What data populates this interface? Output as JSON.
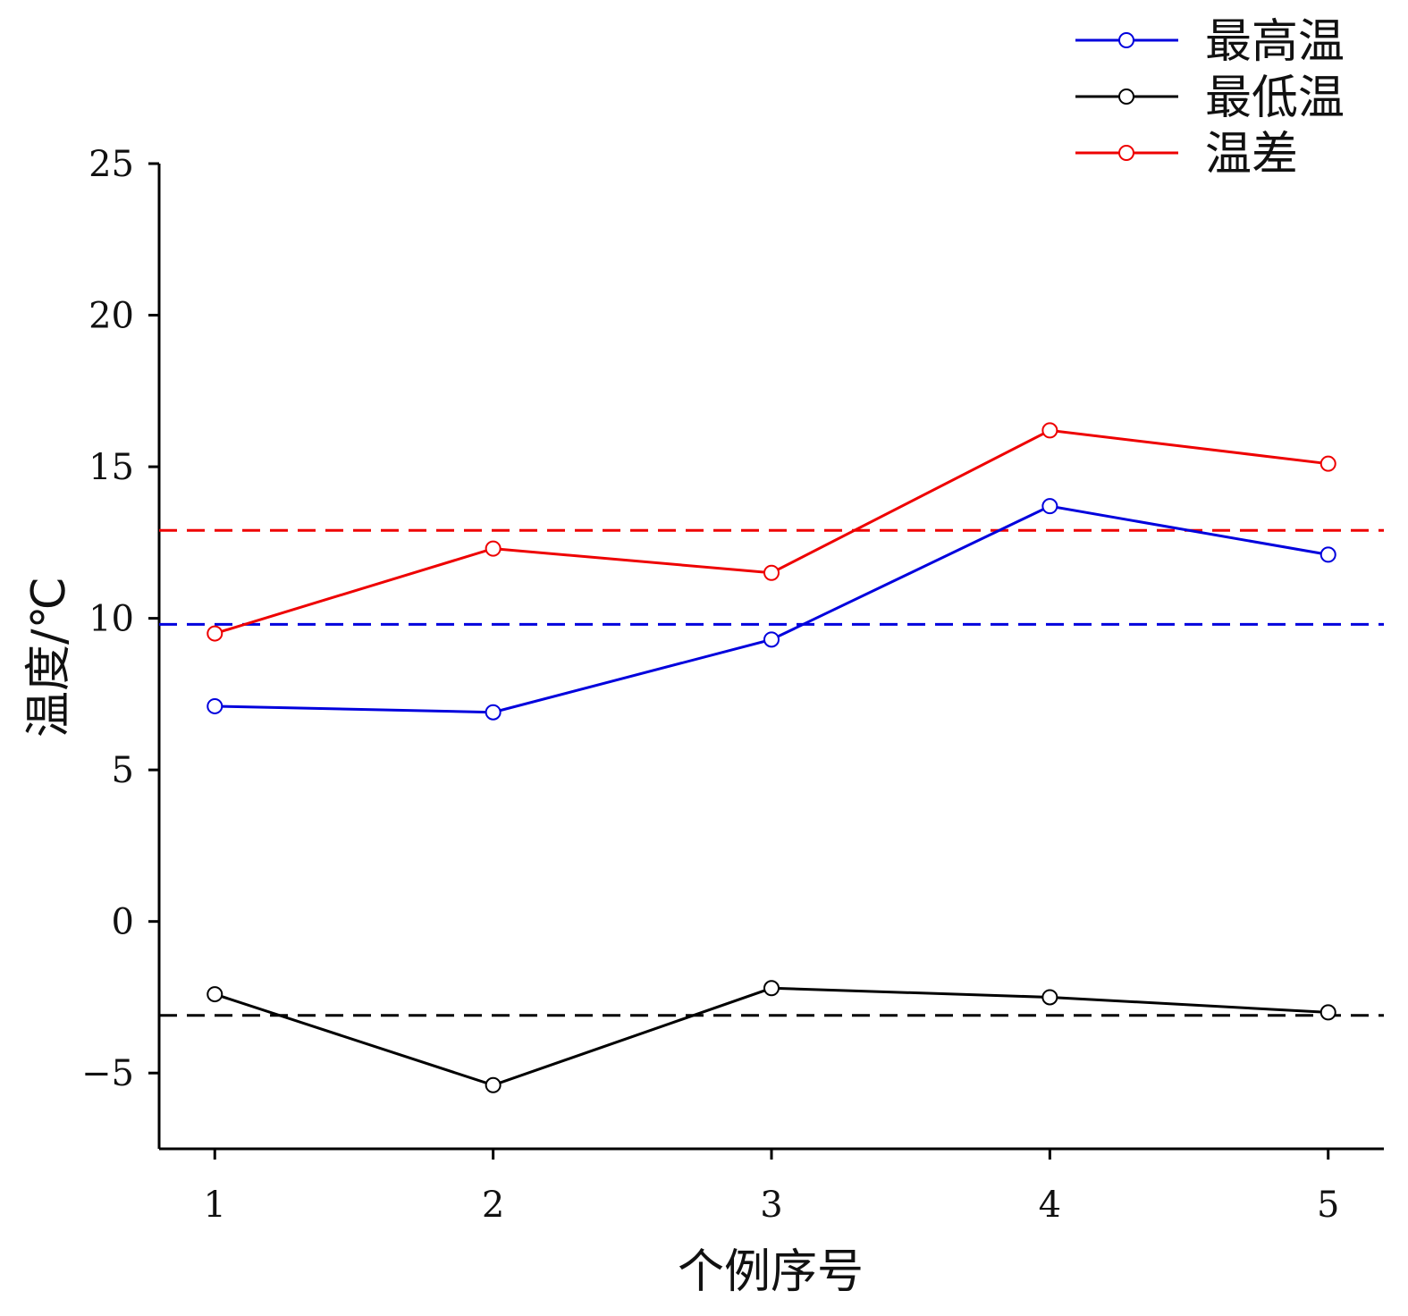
{
  "chart_data": {
    "type": "line",
    "title": "",
    "xlabel": "个例序号",
    "ylabel": "温度/℃",
    "x": [
      1,
      2,
      3,
      4,
      5
    ],
    "xlim": [
      0.8,
      5.2
    ],
    "ylim": [
      -7.5,
      25
    ],
    "xticks": [
      1,
      2,
      3,
      4,
      5
    ],
    "yticks": [
      -5,
      0,
      5,
      10,
      15,
      20,
      25
    ],
    "ytick_labels": [
      "−5",
      "0",
      "5",
      "10",
      "15",
      "20",
      "25"
    ],
    "grid": false,
    "legend_position": "top-right",
    "series": [
      {
        "name": "最高温",
        "color": "#0000dd",
        "values": [
          7.1,
          6.9,
          9.3,
          13.7,
          12.1
        ],
        "mean": 9.8
      },
      {
        "name": "最低温",
        "color": "#000000",
        "values": [
          -2.4,
          -5.4,
          -2.2,
          -2.5,
          -3.0
        ],
        "mean": -3.1
      },
      {
        "name": "温差",
        "color": "#ee0000",
        "values": [
          9.5,
          12.3,
          11.5,
          16.2,
          15.1
        ],
        "mean": 12.9
      }
    ]
  }
}
